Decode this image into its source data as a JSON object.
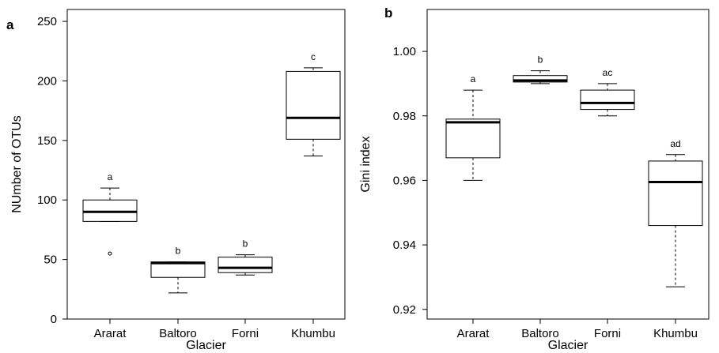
{
  "chart_data": [
    {
      "type": "box",
      "panel": "a",
      "xlabel": "Glacier",
      "ylabel": "NUmber of OTUs",
      "ylim": [
        0,
        260
      ],
      "yticks": [
        0,
        50,
        100,
        150,
        200,
        250
      ],
      "grid": false,
      "categories": [
        "Ararat",
        "Baltoro",
        "Forni",
        "Khumbu"
      ],
      "boxes": [
        {
          "category": "Ararat",
          "min": 82,
          "q1": 82,
          "median": 90,
          "q3": 100,
          "max": 110,
          "outliers": [
            55
          ],
          "label": "a"
        },
        {
          "category": "Baltoro",
          "min": 22,
          "q1": 35,
          "median": 47,
          "q3": 48,
          "max": 48,
          "outliers": [],
          "label": "b"
        },
        {
          "category": "Forni",
          "min": 37,
          "q1": 39,
          "median": 43,
          "q3": 52,
          "max": 54,
          "outliers": [],
          "label": "b"
        },
        {
          "category": "Khumbu",
          "min": 137,
          "q1": 151,
          "median": 169,
          "q3": 208,
          "max": 211,
          "outliers": [],
          "label": "c"
        }
      ]
    },
    {
      "type": "box",
      "panel": "b",
      "xlabel": "Glacier",
      "ylabel": "Gini index",
      "ylim": [
        0.917,
        1.013
      ],
      "yticks": [
        "0.92",
        "0.94",
        "0.96",
        "0.98",
        "1.00"
      ],
      "grid": false,
      "categories": [
        "Ararat",
        "Baltoro",
        "Forni",
        "Khumbu"
      ],
      "boxes": [
        {
          "category": "Ararat",
          "min": 0.96,
          "q1": 0.967,
          "median": 0.978,
          "q3": 0.979,
          "max": 0.988,
          "outliers": [],
          "label": "a"
        },
        {
          "category": "Baltoro",
          "min": 0.99,
          "q1": 0.9905,
          "median": 0.991,
          "q3": 0.9925,
          "max": 0.994,
          "outliers": [],
          "label": "b"
        },
        {
          "category": "Forni",
          "min": 0.98,
          "q1": 0.982,
          "median": 0.984,
          "q3": 0.988,
          "max": 0.99,
          "outliers": [],
          "label": "ac"
        },
        {
          "category": "Khumbu",
          "min": 0.927,
          "q1": 0.946,
          "median": 0.9595,
          "q3": 0.966,
          "max": 0.968,
          "outliers": [],
          "label": "ad"
        }
      ]
    }
  ]
}
